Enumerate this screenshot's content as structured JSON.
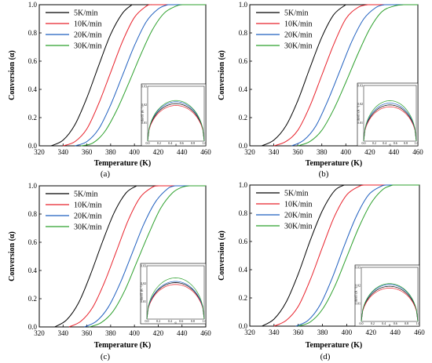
{
  "chart_data": [
    {
      "type": "line",
      "panel_label": "(a)",
      "xlabel": "Temperature (K)",
      "ylabel": "Conversion (α)",
      "xlim": [
        320,
        460
      ],
      "ylim": [
        0.0,
        1.0
      ],
      "x_ticks": [
        "320",
        "340",
        "360",
        "380",
        "400",
        "420",
        "440",
        "460"
      ],
      "y_ticks": [
        "0.0",
        "0.2",
        "0.4",
        "0.6",
        "0.8",
        "1.0"
      ],
      "legend_position": "top-left",
      "series": [
        {
          "name": "5K/min",
          "color": "#000000",
          "points": [
            [
              330,
              0
            ],
            [
              340,
              0.04
            ],
            [
              350,
              0.15
            ],
            [
              360,
              0.34
            ],
            [
              370,
              0.57
            ],
            [
              380,
              0.79
            ],
            [
              390,
              0.94
            ],
            [
              398,
              1.0
            ]
          ]
        },
        {
          "name": "10K/min",
          "color": "#e8202a",
          "points": [
            [
              340,
              0
            ],
            [
              350,
              0.03
            ],
            [
              360,
              0.12
            ],
            [
              370,
              0.3
            ],
            [
              380,
              0.52
            ],
            [
              390,
              0.74
            ],
            [
              400,
              0.91
            ],
            [
              410,
              0.99
            ],
            [
              414,
              1.0
            ]
          ]
        },
        {
          "name": "20K/min",
          "color": "#1f5fbf",
          "points": [
            [
              350,
              0
            ],
            [
              360,
              0.03
            ],
            [
              370,
              0.12
            ],
            [
              380,
              0.29
            ],
            [
              390,
              0.5
            ],
            [
              400,
              0.71
            ],
            [
              410,
              0.88
            ],
            [
              420,
              0.97
            ],
            [
              428,
              1.0
            ]
          ]
        },
        {
          "name": "30K/min",
          "color": "#2ca02c",
          "points": [
            [
              355,
              0
            ],
            [
              365,
              0.02
            ],
            [
              375,
              0.1
            ],
            [
              385,
              0.25
            ],
            [
              395,
              0.44
            ],
            [
              405,
              0.64
            ],
            [
              415,
              0.82
            ],
            [
              425,
              0.94
            ],
            [
              435,
              0.99
            ],
            [
              440,
              1.0
            ]
          ]
        }
      ],
      "inset": {
        "xlabel": "α",
        "ylabel": "dα/dT (K⁻¹)",
        "xlim": [
          0.0,
          1.0
        ],
        "ylim": [
          0.0,
          0.03
        ],
        "x_ticks": [
          "0.0",
          "0.2",
          "0.4",
          "0.6",
          "0.8",
          "1.0"
        ],
        "y_ticks": [
          "0.01",
          "0.02",
          "0.03"
        ],
        "peaks": [
          0.0205,
          0.0195,
          0.0215,
          0.0222
        ]
      }
    },
    {
      "type": "line",
      "panel_label": "(b)",
      "xlabel": "Temperature (K)",
      "ylabel": "Conversion (α)",
      "xlim": [
        320,
        460
      ],
      "ylim": [
        0.0,
        1.0
      ],
      "x_ticks": [
        "320",
        "340",
        "360",
        "380",
        "400",
        "420",
        "440",
        "460"
      ],
      "y_ticks": [
        "0.0",
        "0.2",
        "0.4",
        "0.6",
        "0.8",
        "1.0"
      ],
      "legend_position": "top-left",
      "series": [
        {
          "name": "5K/min",
          "color": "#000000",
          "points": [
            [
              330,
              0
            ],
            [
              340,
              0.04
            ],
            [
              350,
              0.14
            ],
            [
              360,
              0.32
            ],
            [
              370,
              0.55
            ],
            [
              380,
              0.77
            ],
            [
              390,
              0.93
            ],
            [
              400,
              1.0
            ]
          ]
        },
        {
          "name": "10K/min",
          "color": "#e8202a",
          "points": [
            [
              340,
              0
            ],
            [
              350,
              0.03
            ],
            [
              360,
              0.11
            ],
            [
              370,
              0.28
            ],
            [
              380,
              0.5
            ],
            [
              390,
              0.72
            ],
            [
              400,
              0.9
            ],
            [
              410,
              0.98
            ],
            [
              418,
              1.0
            ]
          ]
        },
        {
          "name": "20K/min",
          "color": "#1f5fbf",
          "points": [
            [
              355,
              0
            ],
            [
              365,
              0.04
            ],
            [
              375,
              0.14
            ],
            [
              385,
              0.32
            ],
            [
              395,
              0.53
            ],
            [
              405,
              0.74
            ],
            [
              415,
              0.9
            ],
            [
              425,
              0.98
            ],
            [
              432,
              1.0
            ]
          ]
        },
        {
          "name": "30K/min",
          "color": "#2ca02c",
          "points": [
            [
              360,
              0
            ],
            [
              370,
              0.03
            ],
            [
              380,
              0.11
            ],
            [
              390,
              0.26
            ],
            [
              400,
              0.45
            ],
            [
              410,
              0.65
            ],
            [
              420,
              0.83
            ],
            [
              430,
              0.95
            ],
            [
              440,
              0.99
            ],
            [
              448,
              1.0
            ]
          ]
        }
      ],
      "inset": {
        "xlabel": "α",
        "ylabel": "dα/dT (K⁻¹)",
        "xlim": [
          0.0,
          1.0
        ],
        "ylim": [
          0.0,
          0.03
        ],
        "x_ticks": [
          "0.0",
          "0.2",
          "0.4",
          "0.6",
          "0.8",
          "1.0"
        ],
        "y_ticks": [
          "0.01",
          "0.02",
          "0.03"
        ],
        "peaks": [
          0.0195,
          0.0185,
          0.0205,
          0.0218
        ]
      }
    },
    {
      "type": "line",
      "panel_label": "(c)",
      "xlabel": "Temperature (K)",
      "ylabel": "Conversion (α)",
      "xlim": [
        320,
        460
      ],
      "ylim": [
        0.0,
        1.0
      ],
      "x_ticks": [
        "320",
        "340",
        "360",
        "380",
        "400",
        "420",
        "440",
        "460"
      ],
      "y_ticks": [
        "0.0",
        "0.2",
        "0.4",
        "0.6",
        "0.8",
        "1.0"
      ],
      "legend_position": "top-left",
      "series": [
        {
          "name": "5K/min",
          "color": "#000000",
          "points": [
            [
              333,
              0
            ],
            [
              343,
              0.05
            ],
            [
              353,
              0.17
            ],
            [
              363,
              0.37
            ],
            [
              373,
              0.6
            ],
            [
              383,
              0.81
            ],
            [
              393,
              0.95
            ],
            [
              402,
              1.0
            ]
          ]
        },
        {
          "name": "10K/min",
          "color": "#e8202a",
          "points": [
            [
              345,
              0
            ],
            [
              355,
              0.04
            ],
            [
              365,
              0.14
            ],
            [
              375,
              0.32
            ],
            [
              385,
              0.54
            ],
            [
              395,
              0.76
            ],
            [
              405,
              0.92
            ],
            [
              415,
              0.99
            ],
            [
              420,
              1.0
            ]
          ]
        },
        {
          "name": "20K/min",
          "color": "#1f5fbf",
          "points": [
            [
              358,
              0
            ],
            [
              368,
              0.04
            ],
            [
              378,
              0.14
            ],
            [
              388,
              0.31
            ],
            [
              398,
              0.52
            ],
            [
              408,
              0.73
            ],
            [
              418,
              0.89
            ],
            [
              428,
              0.98
            ],
            [
              434,
              1.0
            ]
          ]
        },
        {
          "name": "30K/min",
          "color": "#2ca02c",
          "points": [
            [
              362,
              0
            ],
            [
              372,
              0.03
            ],
            [
              382,
              0.11
            ],
            [
              392,
              0.26
            ],
            [
              402,
              0.46
            ],
            [
              412,
              0.66
            ],
            [
              422,
              0.84
            ],
            [
              432,
              0.95
            ],
            [
              440,
              0.99
            ],
            [
              446,
              1.0
            ]
          ]
        }
      ],
      "inset": {
        "xlabel": "α",
        "ylabel": "dα/dT (K⁻¹)",
        "xlim": [
          0.0,
          1.0
        ],
        "ylim": [
          0.0,
          0.03
        ],
        "x_ticks": [
          "0.0",
          "0.2",
          "0.4",
          "0.6",
          "0.8",
          "1.0"
        ],
        "y_ticks": [
          "0.01",
          "0.02",
          "0.03"
        ],
        "peaks": [
          0.0205,
          0.0195,
          0.0212,
          0.0232
        ]
      }
    },
    {
      "type": "line",
      "panel_label": "(d)",
      "xlabel": "Temperature (K)",
      "ylabel": "Conversion (α)",
      "xlim": [
        320,
        460
      ],
      "ylim": [
        0.0,
        1.0
      ],
      "x_ticks": [
        "320",
        "340",
        "360",
        "380",
        "400",
        "420",
        "440",
        "460"
      ],
      "y_ticks": [
        "0.0",
        "0.2",
        "0.4",
        "0.6",
        "0.8",
        "1.0"
      ],
      "legend_position": "top-left",
      "series": [
        {
          "name": "5K/min",
          "color": "#000000",
          "points": [
            [
              330,
              0
            ],
            [
              340,
              0.05
            ],
            [
              350,
              0.17
            ],
            [
              360,
              0.37
            ],
            [
              370,
              0.61
            ],
            [
              380,
              0.82
            ],
            [
              390,
              0.96
            ],
            [
              398,
              1.0
            ]
          ]
        },
        {
          "name": "10K/min",
          "color": "#e8202a",
          "points": [
            [
              340,
              0
            ],
            [
              350,
              0.04
            ],
            [
              360,
              0.14
            ],
            [
              370,
              0.33
            ],
            [
              380,
              0.56
            ],
            [
              390,
              0.78
            ],
            [
              400,
              0.93
            ],
            [
              410,
              0.99
            ],
            [
              414,
              1.0
            ]
          ]
        },
        {
          "name": "20K/min",
          "color": "#1f5fbf",
          "points": [
            [
              358,
              0
            ],
            [
              368,
              0.04
            ],
            [
              378,
              0.15
            ],
            [
              388,
              0.34
            ],
            [
              398,
              0.57
            ],
            [
              408,
              0.78
            ],
            [
              418,
              0.93
            ],
            [
              428,
              0.99
            ],
            [
              432,
              1.0
            ]
          ]
        },
        {
          "name": "30K/min",
          "color": "#2ca02c",
          "points": [
            [
              360,
              0
            ],
            [
              370,
              0.03
            ],
            [
              380,
              0.12
            ],
            [
              390,
              0.28
            ],
            [
              400,
              0.49
            ],
            [
              410,
              0.7
            ],
            [
              420,
              0.87
            ],
            [
              430,
              0.97
            ],
            [
              438,
              1.0
            ]
          ]
        }
      ],
      "inset": {
        "xlabel": "α",
        "ylabel": "dα/dT (K⁻¹)",
        "xlim": [
          0.0,
          1.0
        ],
        "ylim": [
          0.0,
          0.03
        ],
        "x_ticks": [
          "0.0",
          "0.2",
          "0.4",
          "0.6",
          "0.8",
          "1.0"
        ],
        "y_ticks": [
          "0.01",
          "0.02",
          "0.03"
        ],
        "peaks": [
          0.0195,
          0.0185,
          0.0205,
          0.021
        ]
      }
    }
  ]
}
